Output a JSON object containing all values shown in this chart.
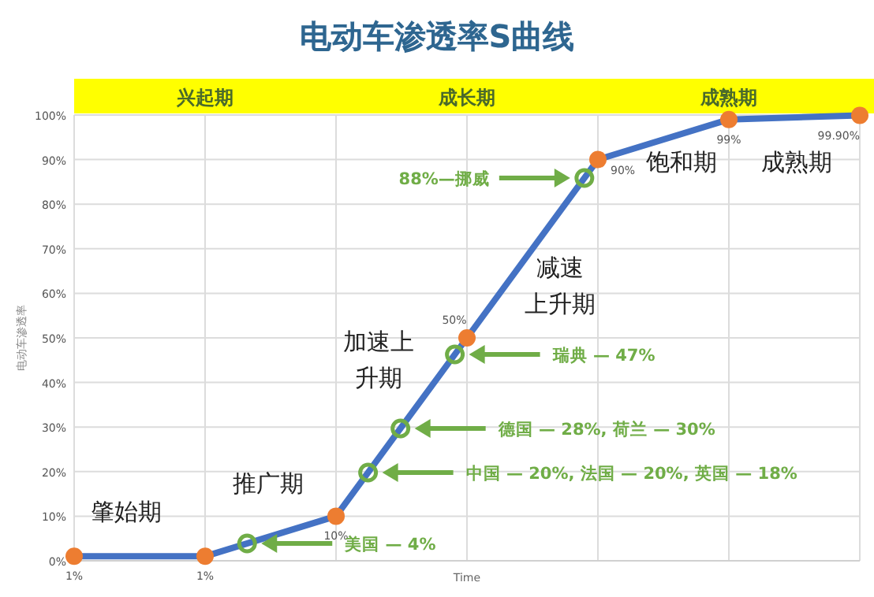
{
  "chart_data": {
    "type": "line",
    "title": "电动车渗透率S曲线",
    "xlabel": "Time",
    "ylabel": "电动车渗透率",
    "categories": [
      null,
      null,
      null,
      null,
      null,
      null,
      null
    ],
    "ylim": [
      0,
      100
    ],
    "yticks": [
      {
        "value": 0,
        "label": "0%"
      },
      {
        "value": 10,
        "label": "10%"
      },
      {
        "value": 20,
        "label": "20%"
      },
      {
        "value": 30,
        "label": "30%"
      },
      {
        "value": 40,
        "label": "40%"
      },
      {
        "value": 50,
        "label": "50%"
      },
      {
        "value": 60,
        "label": "60%"
      },
      {
        "value": 70,
        "label": "70%"
      },
      {
        "value": 80,
        "label": "80%"
      },
      {
        "value": 90,
        "label": "90%"
      },
      {
        "value": 100,
        "label": "100%"
      }
    ],
    "tick_labels": "y",
    "grid": true,
    "series": [
      {
        "color": "#4472c4",
        "marker": "circle",
        "colors": [
          "#ed7d31",
          "#ed7d31",
          "#ed7d31",
          "#ed7d31",
          "#ed7d31",
          "#ed7d31",
          "#ed7d31"
        ],
        "values": [
          1,
          1,
          10,
          50,
          90,
          99,
          99.9
        ],
        "value_labels": [
          "1%",
          "1%",
          "10%",
          "50%",
          "90%",
          "99%",
          "99.90%"
        ]
      }
    ],
    "annotations": [
      "兴起期",
      "成长期",
      "成熟期",
      "肇始期",
      "推广期",
      "加速上升期",
      "减速上升期",
      "饱和期",
      "成熟期",
      "美国 — 4%",
      "中国 — 20%, 法国 — 20%, 英国 — 18%",
      "德国 — 28%, 荷兰 — 30%",
      "瑞典 — 47%",
      "88%—挪威"
    ]
  }
}
